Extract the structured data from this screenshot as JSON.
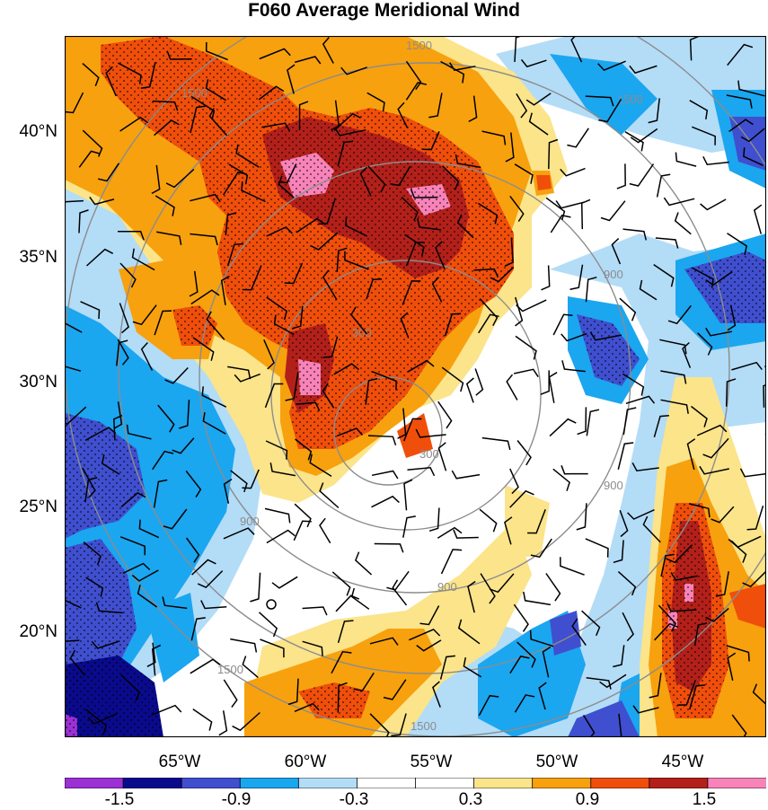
{
  "title": "F060 Average Meridional Wind",
  "lat_labels": [
    "40°N",
    "35°N",
    "30°N",
    "25°N",
    "20°N"
  ],
  "lon_labels": [
    "65°W",
    "60°W",
    "55°W",
    "50°W",
    "45°W"
  ],
  "contour_labels": [
    "1500",
    "1500",
    "1500",
    "900",
    "900",
    "900",
    "900",
    "300",
    "300",
    "1500",
    "1500"
  ],
  "colorbar": {
    "labels": [
      "-1.5",
      "-0.9",
      "-0.3",
      "0.3",
      "0.9",
      "1.5"
    ],
    "colors": [
      "#9b30d4",
      "#0a0a8c",
      "#3f4fcf",
      "#1ba6f0",
      "#b3dcf7",
      "#ffffff",
      "#ffffff",
      "#fbe48a",
      "#f7a10e",
      "#f04e0b",
      "#b3201a",
      "#f783b8"
    ]
  },
  "palette": {
    "light_blue": "#b3dcf7",
    "cyan": "#1ba6f0",
    "blue": "#3f4fcf",
    "navy": "#0a0a8c",
    "yellow": "#fbe48a",
    "orange": "#f7a10e",
    "red": "#f04e0b",
    "darkred": "#b3201a",
    "pink": "#f783b8"
  }
}
